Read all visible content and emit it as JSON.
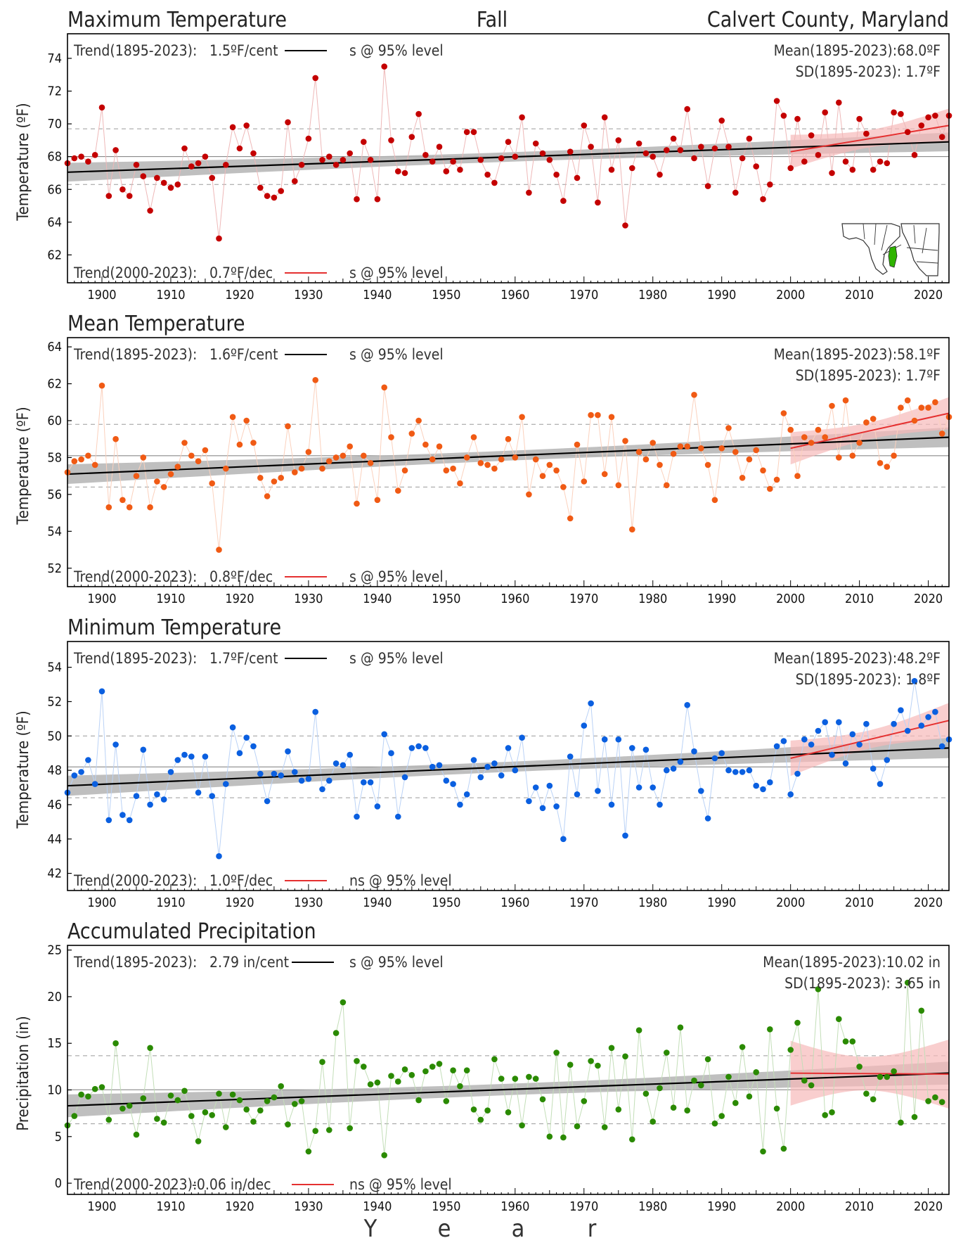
{
  "header": {
    "left": "Maximum Temperature",
    "center": "Fall",
    "right": "Calvert County, Maryland"
  },
  "xaxis_label_letters": [
    "Y",
    "e",
    "a",
    "r"
  ],
  "colors": {
    "max": "#c40000",
    "mean": "#f05a14",
    "min": "#0a5fe0",
    "precip": "#2a8a00",
    "trend_long": "#000000",
    "trend_recent": "#e53030",
    "band_long": "#b4b4b4",
    "band_recent": "#f6b9b9"
  },
  "map_inset": {
    "state": "Maryland",
    "county": "Calvert",
    "description": "Maryland county map with Calvert County highlighted"
  },
  "chart_data": [
    {
      "type": "scatter",
      "id": "max",
      "title": "",
      "ylabel": "Temperature (ºF)",
      "xlim": [
        1895,
        2023
      ],
      "ylim": [
        60.3,
        75.5
      ],
      "yticks": [
        62,
        64,
        66,
        68,
        70,
        72,
        74
      ],
      "xticks": [
        1900,
        1910,
        1920,
        1930,
        1940,
        1950,
        1960,
        1970,
        1980,
        1990,
        2000,
        2010,
        2020
      ],
      "trend_long_text": "Trend(1895-2023):",
      "trend_long_value": "1.5ºF/cent",
      "trend_long_sig": "s @ 95% level",
      "trend_recent_text": "Trend(2000-2023):",
      "trend_recent_value": "0.7ºF/dec",
      "trend_recent_sig": "s @ 95% level",
      "mean_text": "Mean(1895-2023):68.0ºF",
      "sd_text": "SD(1895-2023): 1.7ºF",
      "mean": 68.0,
      "sd": 1.7,
      "trend_long_line": {
        "start": [
          1895,
          67.05
        ],
        "end": [
          2023,
          68.9
        ]
      },
      "trend_recent_line": {
        "start": [
          2000,
          68.3
        ],
        "end": [
          2023,
          69.9
        ]
      },
      "series": [
        {
          "x_start": 1895,
          "values": [
            67.6,
            67.9,
            68.0,
            67.7,
            68.1,
            71.0,
            65.6,
            68.4,
            66.0,
            65.6,
            67.5,
            66.8,
            64.7,
            66.7,
            66.4,
            66.1,
            66.3,
            68.5,
            67.4,
            67.6,
            68.0,
            66.7,
            63.0,
            67.5,
            69.8,
            68.5,
            69.9,
            68.2,
            66.1,
            65.6,
            65.5,
            65.9,
            70.1,
            66.5,
            67.5,
            69.1,
            72.8,
            67.8,
            68.0,
            67.5,
            67.8,
            68.2,
            65.4,
            68.9,
            67.8,
            65.4,
            73.5,
            69.0,
            67.1,
            67.0,
            69.2,
            70.6,
            68.1,
            67.7,
            68.6,
            67.1,
            67.7,
            67.2,
            69.5,
            69.5,
            67.8,
            66.9,
            66.4,
            67.9,
            68.9,
            68.0,
            70.4,
            65.8,
            68.8,
            68.2,
            67.8,
            66.9,
            65.3,
            68.3,
            66.7,
            69.9,
            68.6,
            65.2,
            70.4,
            67.2,
            69.0,
            63.8,
            67.3,
            68.8,
            68.2,
            68.0,
            66.9,
            68.4,
            69.1,
            68.4,
            70.9,
            67.9,
            68.6,
            66.2,
            68.5,
            70.2,
            68.6,
            65.8,
            67.9,
            69.1,
            67.4,
            65.4,
            66.3,
            71.4,
            70.5,
            67.3,
            70.3,
            67.7,
            69.3,
            68.1,
            70.7,
            67.0,
            71.3,
            67.7,
            67.2,
            70.3,
            69.4,
            67.2,
            67.7,
            67.6,
            70.7,
            70.6,
            69.5,
            68.1,
            69.9,
            70.4,
            70.5,
            69.2,
            70.5
          ]
        }
      ]
    },
    {
      "type": "scatter",
      "id": "mean",
      "title": "Mean Temperature",
      "ylabel": "Temperature (ºF)",
      "xlim": [
        1895,
        2023
      ],
      "ylim": [
        51.0,
        64.5
      ],
      "yticks": [
        52,
        54,
        56,
        58,
        60,
        62,
        64
      ],
      "xticks": [
        1900,
        1910,
        1920,
        1930,
        1940,
        1950,
        1960,
        1970,
        1980,
        1990,
        2000,
        2010,
        2020
      ],
      "trend_long_text": "Trend(1895-2023):",
      "trend_long_value": "1.6ºF/cent",
      "trend_long_sig": "s @ 95% level",
      "trend_recent_text": "Trend(2000-2023):",
      "trend_recent_value": "0.8ºF/dec",
      "trend_recent_sig": "s @ 95% level",
      "mean_text": "Mean(1895-2023):58.1ºF",
      "sd_text": "SD(1895-2023): 1.7ºF",
      "mean": 58.1,
      "sd": 1.7,
      "trend_long_line": {
        "start": [
          1895,
          57.1
        ],
        "end": [
          2023,
          59.1
        ]
      },
      "trend_recent_line": {
        "start": [
          2000,
          58.5
        ],
        "end": [
          2023,
          60.4
        ]
      },
      "series": [
        {
          "x_start": 1895,
          "values": [
            57.2,
            57.8,
            57.9,
            58.1,
            57.6,
            61.9,
            55.3,
            59.0,
            55.7,
            55.3,
            57.0,
            58.0,
            55.3,
            56.7,
            56.4,
            57.1,
            57.5,
            58.8,
            58.1,
            57.8,
            58.4,
            56.6,
            53.0,
            57.4,
            60.2,
            58.7,
            60.0,
            58.8,
            56.9,
            55.9,
            56.7,
            56.9,
            59.7,
            57.2,
            57.4,
            58.3,
            62.2,
            57.4,
            57.8,
            58.0,
            58.1,
            58.6,
            55.5,
            58.1,
            57.7,
            55.7,
            61.8,
            59.1,
            56.2,
            57.3,
            59.3,
            60.0,
            58.7,
            57.9,
            58.6,
            57.3,
            57.4,
            56.6,
            58.0,
            59.1,
            57.7,
            57.6,
            57.4,
            57.9,
            59.0,
            58.0,
            60.2,
            56.0,
            57.9,
            57.0,
            57.6,
            57.3,
            56.4,
            54.7,
            58.7,
            56.7,
            60.3,
            60.3,
            57.1,
            60.2,
            56.5,
            58.9,
            54.1,
            58.3,
            57.9,
            58.8,
            57.6,
            56.5,
            58.2,
            58.6,
            58.6,
            61.4,
            58.5,
            57.6,
            55.7,
            58.5,
            59.6,
            58.3,
            56.9,
            57.9,
            58.4,
            57.3,
            56.3,
            56.8,
            60.4,
            59.5,
            57.0,
            59.1,
            58.8,
            59.5,
            59.1,
            60.8,
            58.0,
            61.1,
            58.1,
            58.8,
            59.9,
            60.1,
            57.7,
            57.5,
            58.1,
            60.7,
            61.1,
            60.0,
            60.7,
            60.7,
            61.0,
            59.3,
            60.2
          ]
        }
      ]
    },
    {
      "type": "scatter",
      "id": "min",
      "title": "Minimum Temperature",
      "ylabel": "Temperature (ºF)",
      "xlim": [
        1895,
        2023
      ],
      "ylim": [
        41.0,
        55.5
      ],
      "yticks": [
        42,
        44,
        46,
        48,
        50,
        52,
        54
      ],
      "xticks": [
        1900,
        1910,
        1920,
        1930,
        1940,
        1950,
        1960,
        1970,
        1980,
        1990,
        2000,
        2010,
        2020
      ],
      "trend_long_text": "Trend(1895-2023):",
      "trend_long_value": "1.7ºF/cent",
      "trend_long_sig": "s @ 95% level",
      "trend_recent_text": "Trend(2000-2023):",
      "trend_recent_value": "1.0ºF/dec",
      "trend_recent_sig": "ns @ 95% level",
      "mean_text": "Mean(1895-2023):48.2ºF",
      "sd_text": "SD(1895-2023): 1.8ºF",
      "mean": 48.2,
      "sd": 1.8,
      "trend_long_line": {
        "start": [
          1895,
          47.1
        ],
        "end": [
          2023,
          49.3
        ]
      },
      "trend_recent_line": {
        "start": [
          2000,
          48.7
        ],
        "end": [
          2023,
          50.9
        ]
      },
      "series": [
        {
          "x_start": 1895,
          "values": [
            46.7,
            47.7,
            47.9,
            48.6,
            47.2,
            52.6,
            45.1,
            49.5,
            45.4,
            45.1,
            46.5,
            49.2,
            46.0,
            46.6,
            46.3,
            47.9,
            48.6,
            48.9,
            48.8,
            46.7,
            48.8,
            46.5,
            43.0,
            47.2,
            50.5,
            49.0,
            49.9,
            49.4,
            47.8,
            46.2,
            47.8,
            47.7,
            49.1,
            47.9,
            47.4,
            47.5,
            51.4,
            46.9,
            47.4,
            48.4,
            48.3,
            48.9,
            45.3,
            47.3,
            47.3,
            45.9,
            50.1,
            49.0,
            45.3,
            47.6,
            49.3,
            49.4,
            49.3,
            48.2,
            48.3,
            47.4,
            47.2,
            46.0,
            46.6,
            48.6,
            47.6,
            48.2,
            48.4,
            47.7,
            49.3,
            48.0,
            49.9,
            46.2,
            47.0,
            45.8,
            47.1,
            45.9,
            44.0,
            48.8,
            46.6,
            50.6,
            51.9,
            46.8,
            49.8,
            46.0,
            49.8,
            44.2,
            49.3,
            47.0,
            49.2,
            47.0,
            46.0,
            48.0,
            48.1,
            48.5,
            51.8,
            49.1,
            46.8,
            45.2,
            48.7,
            49.0,
            48.0,
            47.9,
            47.9,
            48.0,
            47.1,
            46.9,
            47.3,
            49.4,
            49.7,
            46.6,
            47.8,
            49.8,
            49.5,
            50.3,
            50.8,
            48.9,
            50.8,
            48.4,
            50.1,
            49.5,
            50.7,
            48.1,
            47.2,
            48.6,
            50.7,
            51.5,
            50.3,
            53.2,
            50.6,
            51.1,
            51.4,
            49.4,
            49.8
          ]
        }
      ]
    },
    {
      "type": "scatter",
      "id": "precip",
      "title": "Accumulated Precipitation",
      "ylabel": "Precipitation (in)",
      "xlim": [
        1895,
        2023
      ],
      "ylim": [
        -1.2,
        25.5
      ],
      "yticks": [
        0,
        5,
        10,
        15,
        20,
        25
      ],
      "xticks": [
        1900,
        1910,
        1920,
        1930,
        1940,
        1950,
        1960,
        1970,
        1980,
        1990,
        2000,
        2010,
        2020
      ],
      "trend_long_text": "Trend(1895-2023):",
      "trend_long_value": "2.79 in/cent",
      "trend_long_sig": "s @ 95% level",
      "trend_recent_text": "Trend(2000-2023):",
      "trend_recent_value": "-0.06 in/dec",
      "trend_recent_sig": "ns @ 95% level",
      "mean_text": "Mean(1895-2023):10.02 in",
      "sd_text": "SD(1895-2023): 3.65 in",
      "mean": 10.02,
      "sd": 3.65,
      "trend_long_line": {
        "start": [
          1895,
          8.3
        ],
        "end": [
          2023,
          11.8
        ]
      },
      "trend_recent_line": {
        "start": [
          2000,
          11.8
        ],
        "end": [
          2023,
          11.7
        ]
      },
      "series": [
        {
          "x_start": 1895,
          "values": [
            6.2,
            7.2,
            9.5,
            9.3,
            10.1,
            10.3,
            6.8,
            15.0,
            8.0,
            8.3,
            5.2,
            9.1,
            14.5,
            6.9,
            6.5,
            9.4,
            8.9,
            9.9,
            7.2,
            4.5,
            7.6,
            7.3,
            9.6,
            6.0,
            9.5,
            8.9,
            7.9,
            6.6,
            7.8,
            8.8,
            9.2,
            10.4,
            6.3,
            8.5,
            8.8,
            3.4,
            5.6,
            13.0,
            5.7,
            16.1,
            19.4,
            5.9,
            13.1,
            12.5,
            10.6,
            10.8,
            3.0,
            11.5,
            10.9,
            12.2,
            11.6,
            8.9,
            12.0,
            12.5,
            12.8,
            8.8,
            12.1,
            10.4,
            12.1,
            7.9,
            6.8,
            7.8,
            13.3,
            11.2,
            7.6,
            11.2,
            6.2,
            11.4,
            11.2,
            9.0,
            5.0,
            14.0,
            4.9,
            12.7,
            6.1,
            8.8,
            13.1,
            12.6,
            6.0,
            14.5,
            7.9,
            13.6,
            4.7,
            16.4,
            9.6,
            6.6,
            10.2,
            14.0,
            8.1,
            16.7,
            7.8,
            11.0,
            10.5,
            13.3,
            6.4,
            7.2,
            11.4,
            8.6,
            14.6,
            9.3,
            11.9,
            3.4,
            16.5,
            8.0,
            3.7,
            14.3,
            17.2,
            11.0,
            10.5,
            20.8,
            7.3,
            7.6,
            17.6,
            15.2,
            15.2,
            12.5,
            9.6,
            9.0,
            11.4,
            11.4,
            12.0,
            6.5,
            21.5,
            7.1,
            18.5,
            8.8,
            9.2,
            8.7
          ]
        }
      ]
    }
  ]
}
